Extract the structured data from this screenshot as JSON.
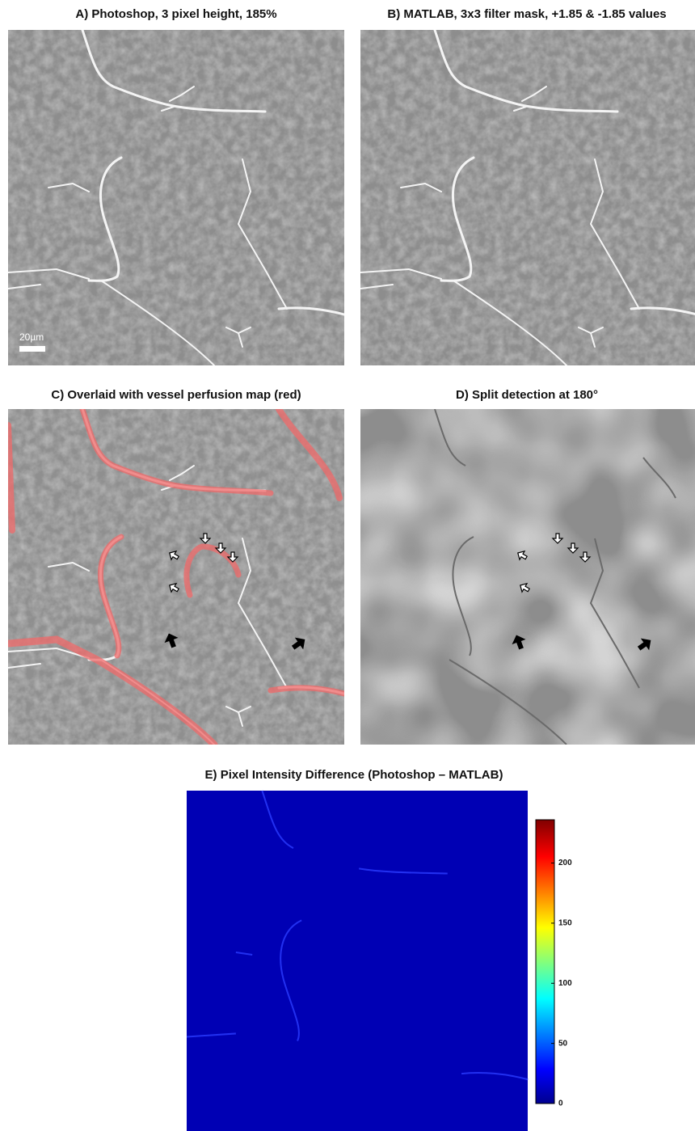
{
  "panels": [
    {
      "title": "A) Photoshop, 3 pixel height, 185%",
      "scale_bar": "20µm"
    },
    {
      "title": "B) MATLAB, 3x3 filter mask, +1.85 & -1.85 values"
    },
    {
      "title": "C) Overlaid with vessel perfusion map (red)"
    },
    {
      "title": "D) Split detection at 180°"
    },
    {
      "title": "E) Pixel Intensity Difference (Photoshop – MATLAB)"
    }
  ],
  "colorbar": {
    "lim": [
      0,
      236
    ],
    "ticks": [
      0,
      50,
      100,
      150,
      200
    ]
  }
}
